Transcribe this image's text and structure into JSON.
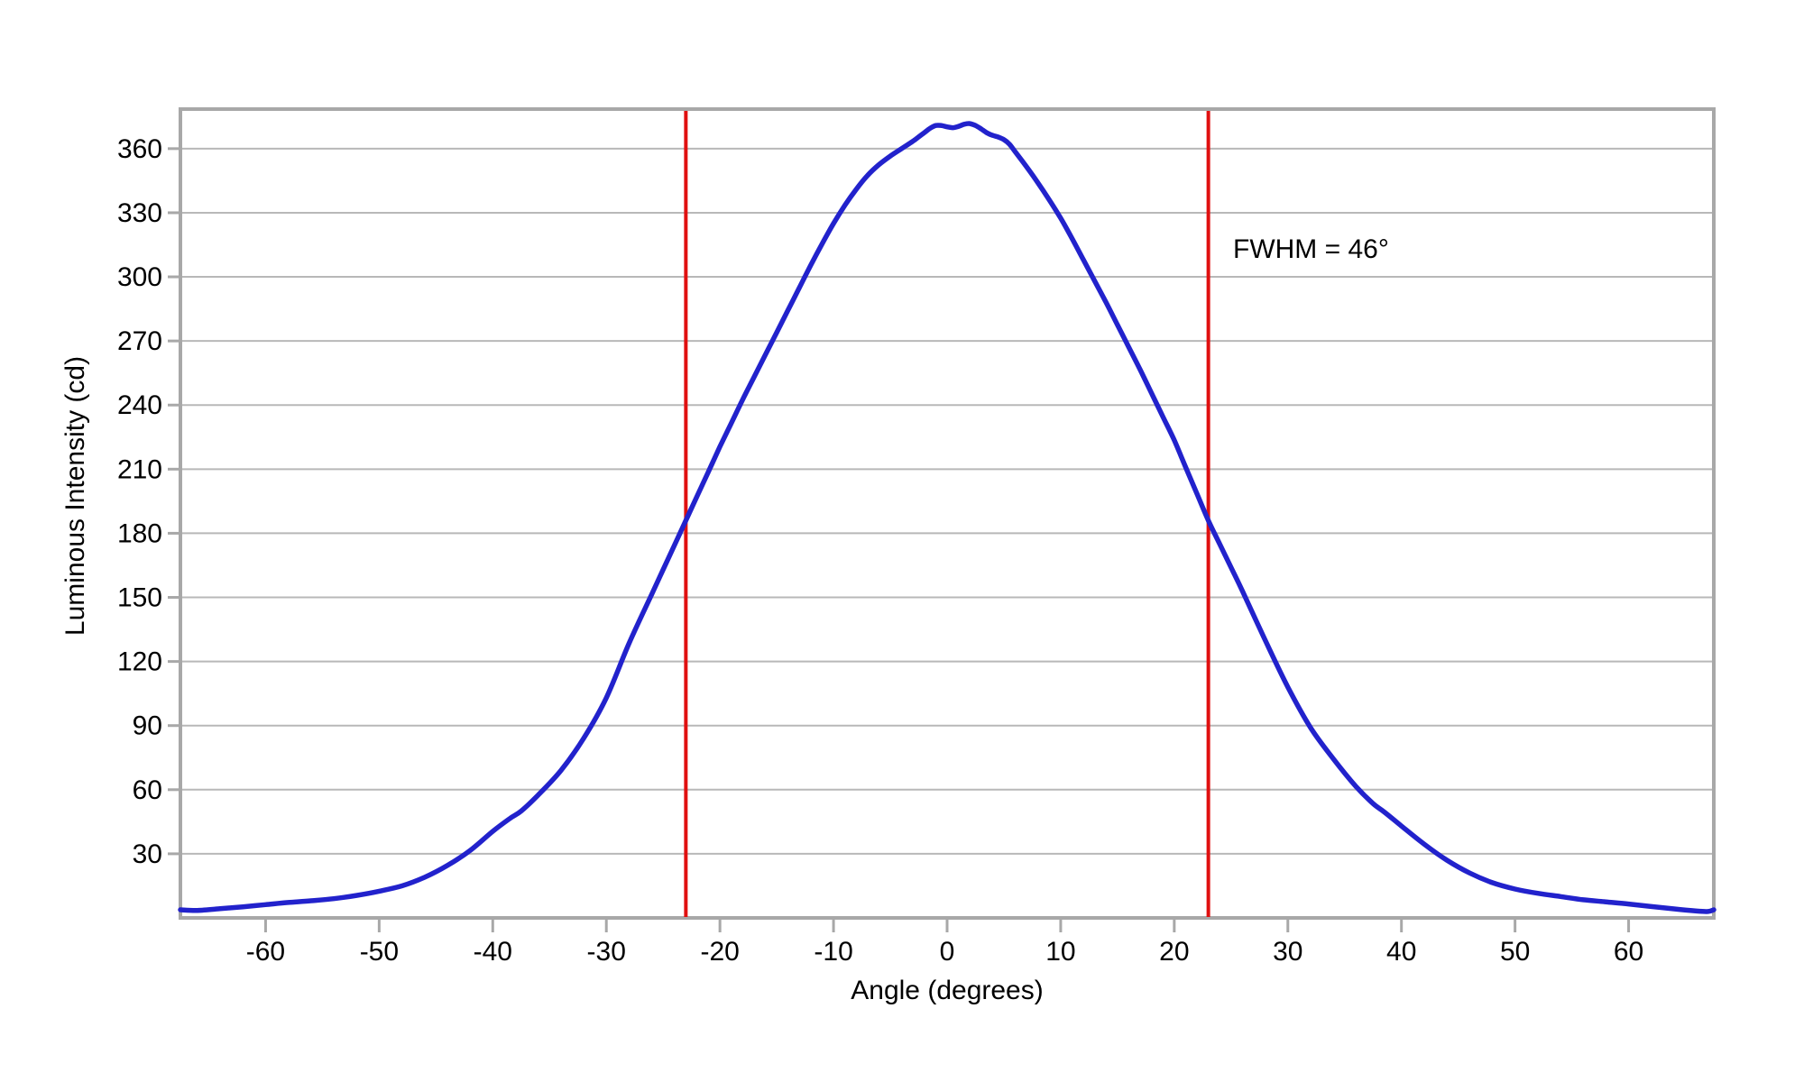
{
  "chart_data": {
    "type": "line",
    "xlabel": "Angle (degrees)",
    "ylabel": "Luminous Intensity (cd)",
    "annotation": "FWHM = 46°",
    "fwhm_degrees": 46,
    "xlim": [
      -67.5,
      67.5
    ],
    "ylim": [
      0,
      378.5
    ],
    "x_ticks": [
      -60,
      -50,
      -40,
      -30,
      -20,
      -10,
      0,
      10,
      20,
      30,
      40,
      50,
      60
    ],
    "y_ticks": [
      30,
      60,
      90,
      120,
      150,
      180,
      210,
      240,
      270,
      300,
      330,
      360
    ],
    "grid": "horizontal-only",
    "legend": "none",
    "reference_lines": [
      {
        "axis": "x",
        "value": -23,
        "meaning": "half-maximum"
      },
      {
        "axis": "x",
        "value": 23,
        "meaning": "half-maximum"
      }
    ],
    "series": [
      {
        "name": "luminous_intensity",
        "color": "#2222cc",
        "points": [
          [
            -67.5,
            3.8
          ],
          [
            -66,
            3.5
          ],
          [
            -64,
            4.3
          ],
          [
            -62,
            5.2
          ],
          [
            -60,
            6.2
          ],
          [
            -58,
            7.2
          ],
          [
            -56,
            8.0
          ],
          [
            -54,
            9.0
          ],
          [
            -52,
            10.5
          ],
          [
            -50,
            12.5
          ],
          [
            -48,
            15.0
          ],
          [
            -46,
            19.0
          ],
          [
            -44,
            24.5
          ],
          [
            -42,
            31.5
          ],
          [
            -40,
            40.5
          ],
          [
            -38.5,
            46.5
          ],
          [
            -37.5,
            50.0
          ],
          [
            -36,
            57.5
          ],
          [
            -34,
            69.0
          ],
          [
            -32,
            84.0
          ],
          [
            -30,
            103.0
          ],
          [
            -28,
            128.5
          ],
          [
            -26,
            151.5
          ],
          [
            -25,
            163.0
          ],
          [
            -24,
            174.5
          ],
          [
            -23,
            186.0
          ],
          [
            -22,
            197.5
          ],
          [
            -21,
            209.0
          ],
          [
            -20,
            220.5
          ],
          [
            -19,
            231.5
          ],
          [
            -18,
            242.5
          ],
          [
            -17,
            253.0
          ],
          [
            -16,
            263.5
          ],
          [
            -15,
            274.0
          ],
          [
            -14,
            284.5
          ],
          [
            -13,
            295.0
          ],
          [
            -12,
            305.5
          ],
          [
            -11,
            315.5
          ],
          [
            -10,
            325.0
          ],
          [
            -9,
            333.5
          ],
          [
            -8,
            341.0
          ],
          [
            -7,
            347.5
          ],
          [
            -6,
            352.5
          ],
          [
            -5,
            356.5
          ],
          [
            -4,
            360.0
          ],
          [
            -3,
            363.5
          ],
          [
            -2.5,
            365.5
          ],
          [
            -2,
            367.5
          ],
          [
            -1.5,
            369.5
          ],
          [
            -1,
            370.8
          ],
          [
            -0.5,
            370.8
          ],
          [
            0,
            370.2
          ],
          [
            0.5,
            369.8
          ],
          [
            1,
            370.4
          ],
          [
            1.5,
            371.4
          ],
          [
            2,
            371.7
          ],
          [
            2.5,
            370.8
          ],
          [
            3,
            369.2
          ],
          [
            3.5,
            367.4
          ],
          [
            4,
            366.2
          ],
          [
            4.5,
            365.4
          ],
          [
            5,
            364.2
          ],
          [
            5.5,
            362.0
          ],
          [
            6,
            358.5
          ],
          [
            7,
            351.5
          ],
          [
            8,
            344.0
          ],
          [
            9,
            336.0
          ],
          [
            10,
            327.5
          ],
          [
            11,
            318.0
          ],
          [
            12,
            308.0
          ],
          [
            13,
            298.0
          ],
          [
            14,
            288.0
          ],
          [
            15,
            277.5
          ],
          [
            16,
            267.0
          ],
          [
            17,
            256.5
          ],
          [
            18,
            245.5
          ],
          [
            19,
            234.5
          ],
          [
            20,
            223.5
          ],
          [
            21,
            211.0
          ],
          [
            22,
            198.5
          ],
          [
            23,
            186.0
          ],
          [
            24,
            175.0
          ],
          [
            25,
            164.0
          ],
          [
            26,
            153.0
          ],
          [
            28,
            130.0
          ],
          [
            30,
            108.0
          ],
          [
            32,
            89.0
          ],
          [
            34,
            74.5
          ],
          [
            36,
            61.5
          ],
          [
            37.5,
            53.5
          ],
          [
            38.5,
            49.5
          ],
          [
            40,
            43.0
          ],
          [
            42,
            34.5
          ],
          [
            44,
            27.0
          ],
          [
            46,
            21.0
          ],
          [
            48,
            16.5
          ],
          [
            50,
            13.5
          ],
          [
            52,
            11.5
          ],
          [
            54,
            10.0
          ],
          [
            56,
            8.5
          ],
          [
            58,
            7.5
          ],
          [
            60,
            6.5
          ],
          [
            62,
            5.3
          ],
          [
            64,
            4.2
          ],
          [
            66,
            3.2
          ],
          [
            67,
            3.0
          ],
          [
            67.5,
            3.8
          ]
        ]
      }
    ]
  },
  "colors": {
    "curve": "#2222cc",
    "reference_line": "#e01010",
    "gridline": "#b8b8b8",
    "frame": "#a8a8a8",
    "text": "#000000",
    "background": "#ffffff"
  }
}
